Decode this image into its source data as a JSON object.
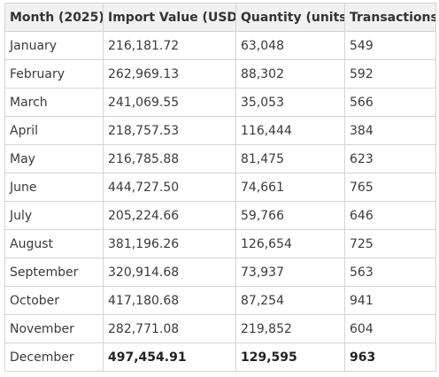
{
  "table": {
    "headers": [
      "Month (2025)",
      "Import Value (USD)",
      "Quantity (units)",
      "Transactions"
    ],
    "rows": [
      {
        "month": "January",
        "value": "216,181.72",
        "quantity": "63,048",
        "transactions": "549"
      },
      {
        "month": "February",
        "value": "262,969.13",
        "quantity": "88,302",
        "transactions": "592"
      },
      {
        "month": "March",
        "value": "241,069.55",
        "quantity": "35,053",
        "transactions": "566"
      },
      {
        "month": "April",
        "value": "218,757.53",
        "quantity": "116,444",
        "transactions": "384"
      },
      {
        "month": "May",
        "value": "216,785.88",
        "quantity": "81,475",
        "transactions": "623"
      },
      {
        "month": "June",
        "value": "444,727.50",
        "quantity": "74,661",
        "transactions": "765"
      },
      {
        "month": "July",
        "value": "205,224.66",
        "quantity": "59,766",
        "transactions": "646"
      },
      {
        "month": "August",
        "value": "381,196.26",
        "quantity": "126,654",
        "transactions": "725"
      },
      {
        "month": "September",
        "value": "320,914.68",
        "quantity": "73,937",
        "transactions": "563"
      },
      {
        "month": "October",
        "value": "417,180.68",
        "quantity": "87,254",
        "transactions": "941"
      },
      {
        "month": "November",
        "value": "282,771.08",
        "quantity": "219,852",
        "transactions": "604"
      },
      {
        "month": "December",
        "value": "497,454.91",
        "quantity": "129,595",
        "transactions": "963",
        "bold": true
      }
    ]
  }
}
